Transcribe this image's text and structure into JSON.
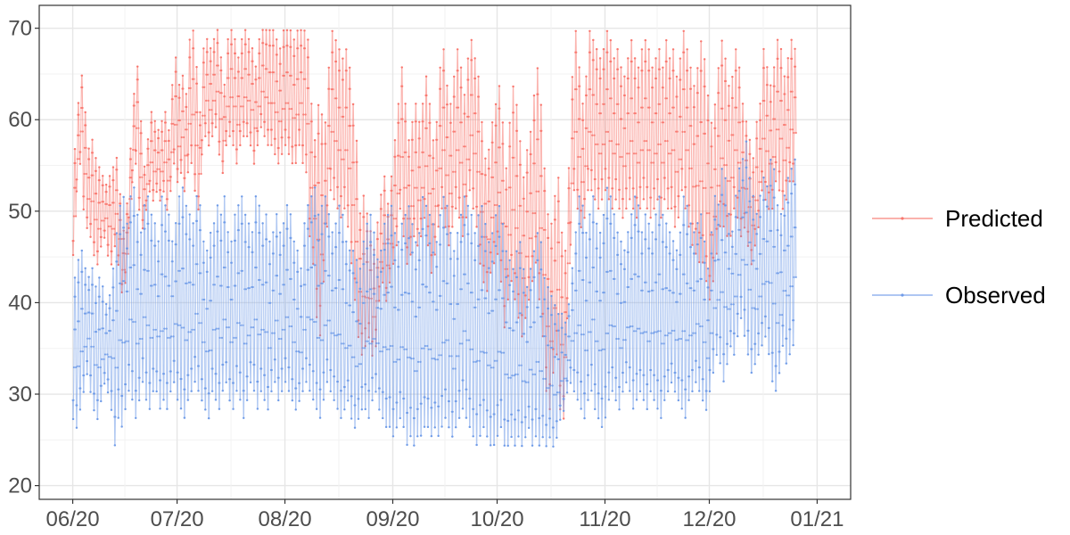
{
  "chart_data": {
    "type": "line",
    "title": "",
    "xlabel": "",
    "ylabel": "",
    "x_range": [
      "2020-06-01",
      "2021-01-01"
    ],
    "ylim": [
      18.5,
      72.5
    ],
    "x_ticks": [
      {
        "date": "2020-06-01",
        "label": "06/20"
      },
      {
        "date": "2020-07-01",
        "label": "07/20"
      },
      {
        "date": "2020-08-01",
        "label": "08/20"
      },
      {
        "date": "2020-09-01",
        "label": "09/20"
      },
      {
        "date": "2020-10-01",
        "label": "10/20"
      },
      {
        "date": "2020-11-01",
        "label": "11/20"
      },
      {
        "date": "2020-12-01",
        "label": "12/20"
      },
      {
        "date": "2021-01-01",
        "label": "01/21"
      }
    ],
    "y_ticks": [
      20,
      30,
      40,
      50,
      60,
      70
    ],
    "grid": true,
    "legend_position": "right",
    "series": [
      {
        "name": "Predicted",
        "color": "#f8766d",
        "daily_max": [
          57,
          62,
          65,
          61,
          57,
          58,
          56,
          55,
          54,
          53,
          54,
          55,
          56,
          52,
          48,
          51,
          57,
          63,
          66,
          60,
          55,
          58,
          61,
          60,
          59,
          60,
          61,
          59,
          64,
          67,
          64,
          65,
          63,
          69,
          70,
          66,
          61,
          68,
          69,
          68,
          69,
          70,
          67,
          64,
          69,
          70,
          69,
          67,
          69,
          70,
          69,
          68,
          66,
          69,
          70,
          70,
          70,
          70,
          69,
          68,
          70,
          70,
          70,
          69,
          70,
          70,
          70,
          69,
          62,
          58,
          62,
          61,
          60,
          66,
          70,
          69,
          68,
          67,
          68,
          66,
          62,
          58,
          50,
          52,
          50,
          48,
          46,
          49,
          52,
          54,
          51,
          54,
          58,
          62,
          66,
          62,
          58,
          60,
          62,
          60,
          62,
          65,
          62,
          58,
          60,
          66,
          68,
          64,
          62,
          65,
          68,
          66,
          63,
          67,
          69,
          67,
          65,
          60,
          56,
          57,
          60,
          62,
          64,
          60,
          55,
          60,
          64,
          62,
          58,
          54,
          57,
          59,
          63,
          66,
          62,
          55,
          50,
          49,
          52,
          54,
          48,
          46,
          55,
          65,
          70,
          66,
          62,
          65,
          70,
          69,
          68,
          67,
          68,
          70,
          69,
          67,
          68,
          66,
          65,
          67,
          69,
          67,
          66,
          68,
          69,
          68,
          66,
          67,
          68,
          66,
          69,
          67,
          68,
          65,
          67,
          70,
          68,
          66,
          64,
          66,
          69,
          67,
          63,
          60,
          62,
          66,
          69,
          67,
          64,
          65,
          68,
          66,
          62,
          60,
          58,
          56,
          60,
          62,
          68,
          66,
          64,
          66,
          69,
          68,
          65,
          67,
          69,
          68
        ],
        "daily_min": [
          45,
          52,
          55,
          50,
          48,
          47,
          45,
          44,
          46,
          47,
          45,
          44,
          46,
          44,
          41,
          42,
          48,
          53,
          55,
          50,
          48,
          50,
          52,
          51,
          52,
          51,
          52,
          50,
          52,
          55,
          53,
          54,
          52,
          54,
          55,
          52,
          50,
          56,
          58,
          57,
          58,
          59,
          56,
          54,
          57,
          58,
          57,
          55,
          57,
          58,
          58,
          57,
          55,
          57,
          59,
          58,
          57,
          57,
          56,
          55,
          56,
          57,
          56,
          55,
          55,
          57,
          55,
          54,
          47,
          44,
          38,
          36,
          42,
          48,
          52,
          51,
          50,
          49,
          50,
          48,
          44,
          40,
          36,
          34,
          35,
          36,
          34,
          35,
          40,
          42,
          40,
          42,
          44,
          46,
          50,
          47,
          44,
          45,
          47,
          46,
          47,
          49,
          46,
          43,
          45,
          48,
          50,
          48,
          46,
          48,
          50,
          49,
          47,
          49,
          52,
          50,
          48,
          44,
          42,
          41,
          43,
          44,
          45,
          42,
          37,
          40,
          42,
          40,
          38,
          36,
          38,
          40,
          42,
          44,
          40,
          36,
          30,
          28,
          32,
          34,
          28,
          27,
          38,
          46,
          52,
          50,
          48,
          49,
          52,
          52,
          51,
          50,
          51,
          52,
          51,
          50,
          51,
          50,
          49,
          50,
          51,
          50,
          49,
          50,
          51,
          50,
          49,
          50,
          51,
          49,
          51,
          50,
          50,
          48,
          49,
          52,
          50,
          48,
          46,
          45,
          44,
          44,
          42,
          40,
          42,
          45,
          48,
          48,
          47,
          47,
          50,
          49,
          47,
          48,
          46,
          44,
          46,
          48,
          52,
          51,
          50,
          50,
          53,
          52,
          50,
          51,
          53,
          53
        ]
      },
      {
        "name": "Observed",
        "color": "#6f9be8",
        "daily_max": [
          43,
          45,
          46,
          44,
          43,
          44,
          42,
          43,
          42,
          40,
          41,
          44,
          48,
          51,
          52,
          49,
          52,
          53,
          50,
          48,
          51,
          52,
          50,
          49,
          47,
          52,
          51,
          50,
          47,
          49,
          52,
          53,
          51,
          50,
          49,
          52,
          51,
          47,
          46,
          48,
          49,
          51,
          50,
          52,
          48,
          47,
          50,
          51,
          52,
          50,
          49,
          48,
          52,
          51,
          49,
          50,
          47,
          48,
          50,
          48,
          49,
          51,
          50,
          47,
          46,
          44,
          49,
          51,
          52,
          53,
          50,
          51,
          52,
          50,
          48,
          49,
          51,
          50,
          47,
          46,
          46,
          45,
          44,
          47,
          49,
          50,
          48,
          45,
          46,
          49,
          50,
          51,
          48,
          47,
          49,
          50,
          51,
          49,
          47,
          48,
          52,
          51,
          50,
          49,
          47,
          50,
          52,
          51,
          48,
          46,
          48,
          50,
          52,
          51,
          50,
          48,
          50,
          51,
          49,
          47,
          48,
          50,
          51,
          49,
          46,
          45,
          44,
          46,
          47,
          44,
          42,
          44,
          46,
          48,
          47,
          43,
          42,
          41,
          40,
          39,
          39,
          38,
          40,
          44,
          48,
          52,
          51,
          48,
          50,
          52,
          49,
          48,
          50,
          53,
          52,
          50,
          48,
          47,
          46,
          48,
          50,
          52,
          51,
          48,
          50,
          49,
          48,
          50,
          52,
          50,
          49,
          48,
          47,
          46,
          48,
          52,
          51,
          49,
          48,
          49,
          50,
          47,
          44,
          48,
          52,
          51,
          55,
          54,
          50,
          48,
          52,
          55,
          56,
          58,
          54,
          52,
          50,
          52,
          54,
          53,
          56,
          55,
          51,
          50,
          52,
          54,
          55,
          56
        ],
        "daily_min": [
          27,
          26,
          28,
          30,
          32,
          30,
          28,
          27,
          29,
          31,
          30,
          28,
          24,
          27,
          26,
          28,
          30,
          29,
          27,
          29,
          31,
          29,
          28,
          30,
          30,
          28,
          29,
          28,
          30,
          31,
          29,
          28,
          27,
          29,
          30,
          31,
          30,
          29,
          28,
          27,
          30,
          29,
          28,
          30,
          31,
          29,
          28,
          30,
          29,
          27,
          29,
          31,
          30,
          28,
          30,
          29,
          28,
          30,
          31,
          29,
          30,
          31,
          30,
          29,
          28,
          29,
          30,
          31,
          30,
          29,
          28,
          27,
          29,
          31,
          30,
          29,
          28,
          27,
          28,
          29,
          27,
          26,
          27,
          28,
          28,
          27,
          29,
          30,
          28,
          27,
          26,
          26,
          25,
          26,
          27,
          26,
          24,
          25,
          24,
          25,
          25,
          26,
          26,
          25,
          26,
          25,
          26,
          27,
          26,
          25,
          26,
          27,
          28,
          27,
          26,
          25,
          24,
          25,
          26,
          25,
          24,
          24,
          25,
          26,
          24,
          24,
          25,
          24,
          25,
          24,
          25,
          26,
          24,
          25,
          24,
          25,
          24,
          25,
          24,
          25,
          27,
          28,
          30,
          31,
          30,
          29,
          28,
          27,
          29,
          30,
          28,
          27,
          26,
          27,
          29,
          30,
          29,
          28,
          30,
          31,
          30,
          28,
          29,
          30,
          29,
          28,
          30,
          29,
          28,
          27,
          29,
          30,
          31,
          30,
          29,
          28,
          27,
          29,
          30,
          31,
          30,
          29,
          28,
          30,
          32,
          34,
          33,
          31,
          33,
          35,
          34,
          36,
          38,
          36,
          34,
          32,
          33,
          34,
          35,
          36,
          34,
          31,
          30,
          32,
          35,
          33,
          34,
          35
        ]
      }
    ]
  }
}
